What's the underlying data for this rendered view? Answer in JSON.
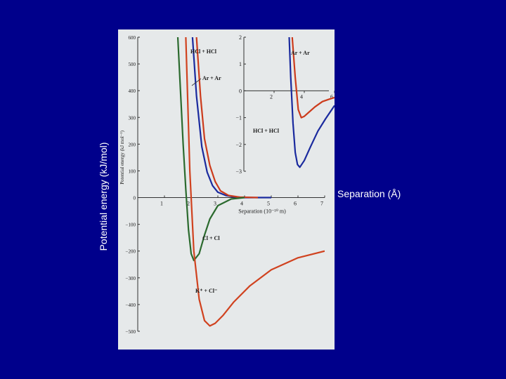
{
  "slide": {
    "ylabel": "Potential energy (kJ/mol)",
    "xlabel": "Separation (Å)"
  },
  "colors": {
    "background": "#00008b",
    "hcl": "#1a2a9e",
    "ar": "#cc3b1c",
    "cl": "#2b6a2e",
    "k_cl": "#d0421f"
  },
  "chart_data": [
    {
      "type": "line",
      "title": "",
      "xlabel": "Separation (10⁻¹⁰ m)",
      "ylabel": "Potential energy (kJ mol⁻¹)",
      "xlim": [
        0,
        7
      ],
      "ylim": [
        -500,
        600
      ],
      "xticks": [
        "1",
        "2",
        "3",
        "4",
        "5",
        "6",
        "7"
      ],
      "yticks": [
        "600",
        "500",
        "400",
        "300",
        "200",
        "100",
        "0",
        "−100",
        "−200",
        "−300",
        "−400",
        "−500"
      ],
      "series": [
        {
          "name": "HCl + HCl",
          "color": "#1a2a9e",
          "x": [
            2.05,
            2.2,
            2.4,
            2.6,
            2.8,
            3.0,
            3.3,
            3.6,
            4.0,
            5.0
          ],
          "y": [
            600,
            380,
            190,
            95,
            45,
            20,
            8,
            3,
            0,
            0
          ]
        },
        {
          "name": "Ar + Ar",
          "color": "#cc3b1c",
          "x": [
            2.2,
            2.35,
            2.5,
            2.7,
            2.9,
            3.1,
            3.4,
            3.8,
            4.5
          ],
          "y": [
            600,
            380,
            220,
            120,
            60,
            25,
            8,
            2,
            0
          ]
        },
        {
          "name": "Cl + Cl",
          "color": "#2b6a2e",
          "x": [
            1.5,
            1.6,
            1.7,
            1.8,
            1.9,
            2.0,
            2.1,
            2.3,
            2.5,
            2.7,
            3.0,
            3.5,
            4.0
          ],
          "y": [
            600,
            400,
            200,
            30,
            -120,
            -210,
            -235,
            -210,
            -140,
            -80,
            -30,
            -5,
            0
          ]
        },
        {
          "name": "K⁺ + Cl⁻",
          "color": "#d0421f",
          "x": [
            1.8,
            1.95,
            2.1,
            2.3,
            2.5,
            2.7,
            2.9,
            3.2,
            3.6,
            4.2,
            5.0,
            6.0,
            7.0
          ],
          "y": [
            600,
            100,
            -200,
            -380,
            -460,
            -480,
            -470,
            -440,
            -390,
            -330,
            -270,
            -225,
            -200
          ]
        }
      ],
      "annotations": [
        "HCl + HCl",
        "Ar + Ar",
        "Cl + Cl",
        "K⁺ + Cl⁻"
      ]
    },
    {
      "type": "line",
      "title": "",
      "xlim": [
        0,
        6
      ],
      "ylim": [
        -3,
        2
      ],
      "xticks": [
        "2",
        "4",
        "6"
      ],
      "yticks": [
        "2",
        "1",
        "0",
        "−1",
        "−2",
        "−3"
      ],
      "series": [
        {
          "name": "Ar + Ar",
          "color": "#cc3b1c",
          "x": [
            3.2,
            3.4,
            3.6,
            3.8,
            4.0,
            4.3,
            4.7,
            5.2,
            5.7,
            6.0
          ],
          "y": [
            2.0,
            0.5,
            -0.7,
            -1.0,
            -0.95,
            -0.8,
            -0.6,
            -0.4,
            -0.3,
            -0.25
          ]
        },
        {
          "name": "HCl + HCl",
          "color": "#1a2a9e",
          "x": [
            3.0,
            3.1,
            3.25,
            3.4,
            3.55,
            3.7,
            4.0,
            4.4,
            4.9,
            5.4,
            6.0
          ],
          "y": [
            2.0,
            0.5,
            -1.2,
            -2.3,
            -2.75,
            -2.85,
            -2.6,
            -2.1,
            -1.5,
            -1.05,
            -0.55
          ]
        }
      ],
      "annotations": [
        "Ar + Ar",
        "HCl + HCl"
      ]
    }
  ]
}
